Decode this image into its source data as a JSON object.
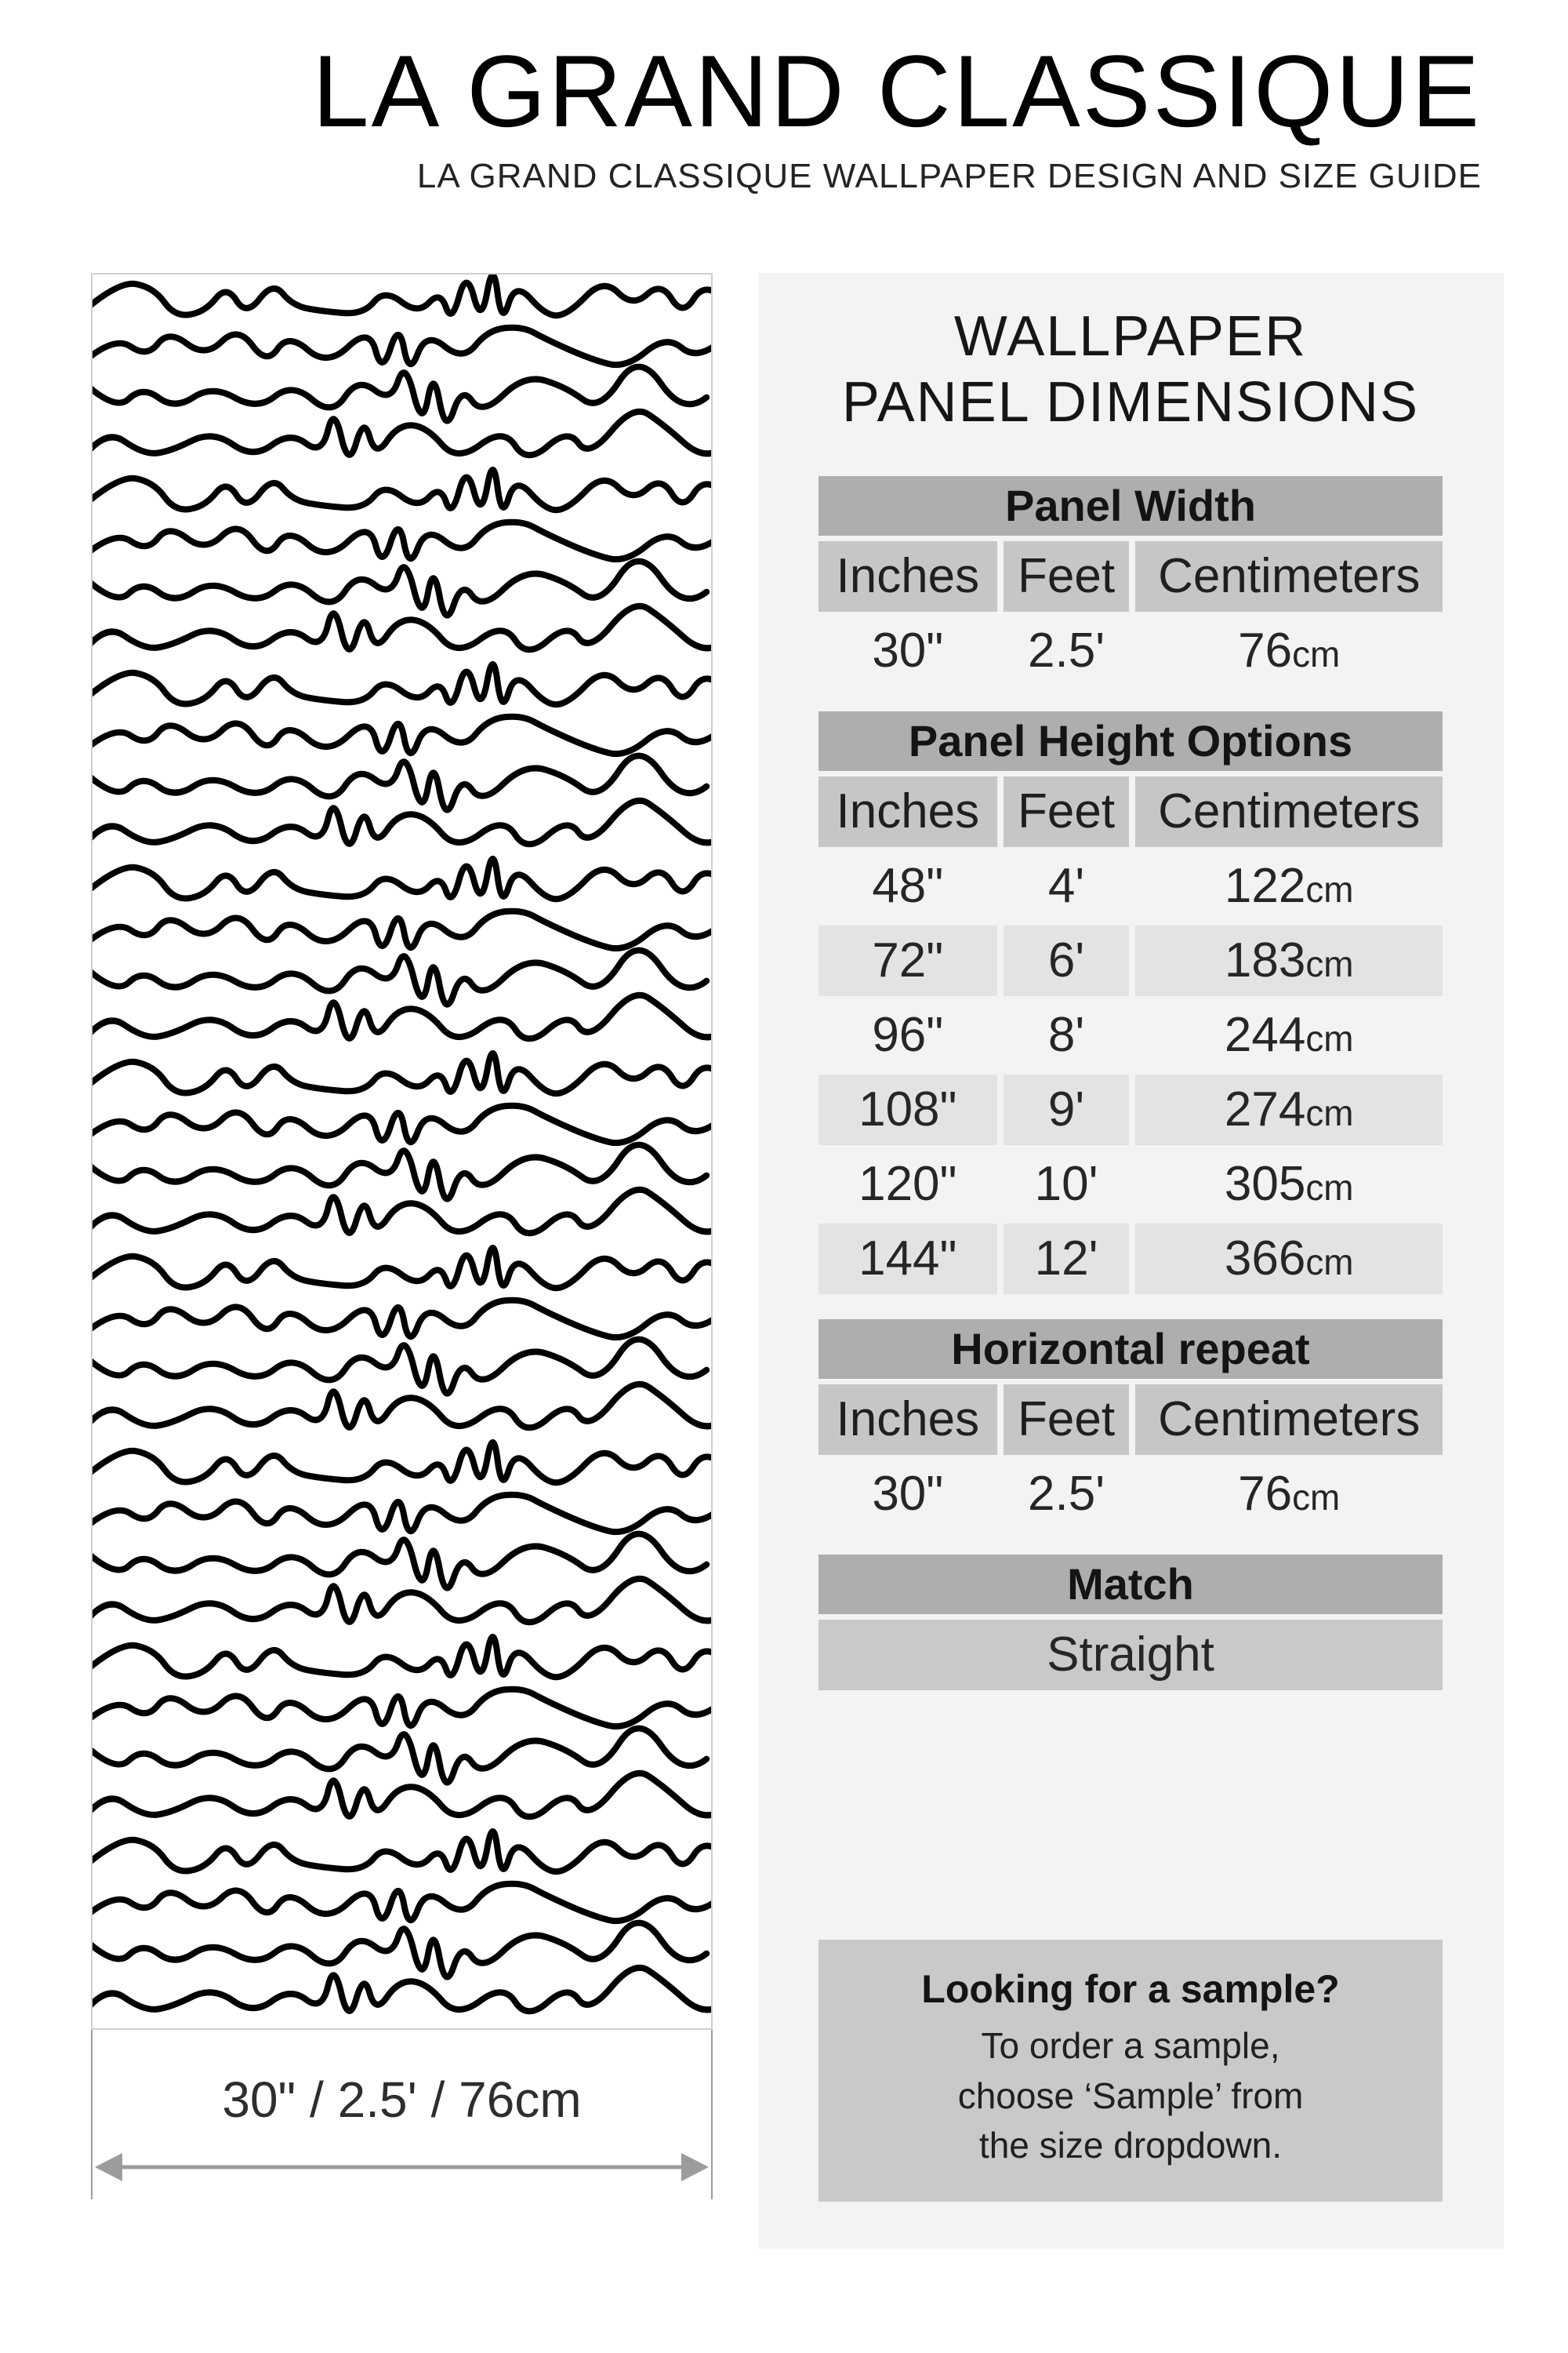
{
  "header": {
    "title": "LA GRAND CLASSIQUE",
    "subtitle": "LA GRAND CLASSIQUE WALLPAPER DESIGN AND SIZE GUIDE"
  },
  "preview": {
    "width_label": "30\" / 2.5' / 76cm"
  },
  "panel": {
    "heading_line1": "WALLPAPER",
    "heading_line2": "PANEL DIMENSIONS",
    "sections": {
      "panel_width": {
        "title": "Panel Width",
        "columns": [
          "Inches",
          "Feet",
          "Centimeters"
        ],
        "rows": [
          [
            "30\"",
            "2.5'",
            "76cm"
          ]
        ]
      },
      "panel_height": {
        "title": "Panel Height Options",
        "columns": [
          "Inches",
          "Feet",
          "Centimeters"
        ],
        "rows": [
          [
            "48\"",
            "4'",
            "122cm"
          ],
          [
            "72\"",
            "6'",
            "183cm"
          ],
          [
            "96\"",
            "8'",
            "244cm"
          ],
          [
            "108\"",
            "9'",
            "274cm"
          ],
          [
            "120\"",
            "10'",
            "305cm"
          ],
          [
            "144\"",
            "12'",
            "366cm"
          ]
        ]
      },
      "horizontal_repeat": {
        "title": "Horizontal repeat",
        "columns": [
          "Inches",
          "Feet",
          "Centimeters"
        ],
        "rows": [
          [
            "30\"",
            "2.5'",
            "76cm"
          ]
        ]
      },
      "match": {
        "title": "Match",
        "value": "Straight"
      }
    },
    "sample_box": {
      "title": "Looking for a sample?",
      "lines": [
        "To order a sample,",
        "choose ‘Sample’ from",
        "the size dropdown."
      ]
    }
  },
  "colors": {
    "panel_bg": "#f3f3f3",
    "section_bar": "#aeaeae",
    "column_header": "#c6c6c6",
    "zebra_row": "#e3e3e3",
    "info_box": "#c9c9c9",
    "arrow": "#9c9c9c",
    "pattern_stroke": "#000000"
  }
}
